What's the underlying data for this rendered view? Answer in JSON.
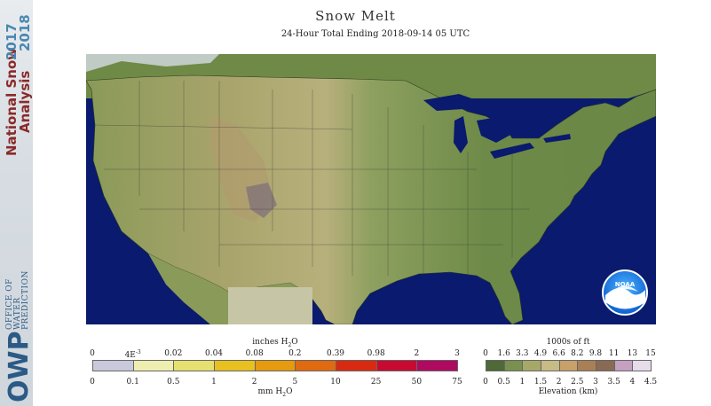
{
  "title": "Snow Melt",
  "subtitle": "24-Hour Total Ending 2018-09-14 05 UTC",
  "sidebar": {
    "title_line1": "National Snow",
    "title_line2": "Analysis",
    "year_line1": "2017",
    "year_line2": "2018",
    "org_lines": [
      "OFFICE OF",
      "WATER",
      "PREDICTION"
    ],
    "org_abbrev": "OWP"
  },
  "noaa_logo": "NOAA",
  "colors": {
    "ocean": "#0a1a6e",
    "land_low": "#6f8a46",
    "land_mid": "#a3a868",
    "land_high": "#c9b889",
    "snow_cap": "#e8e8f0"
  },
  "legend_melt": {
    "top_label": "inches H",
    "top_label_sub": "2",
    "top_label_end": "O",
    "top_ticks": [
      "0",
      "4E",
      "0.02",
      "0.04",
      "0.08",
      "0.2",
      "0.39",
      "0.98",
      "2",
      "3"
    ],
    "top_tick_sup": "-3",
    "bottom_ticks": [
      "0",
      "0.1",
      "0.5",
      "1",
      "2",
      "5",
      "10",
      "25",
      "50",
      "75"
    ],
    "bottom_label": "mm H",
    "bottom_label_sub": "2",
    "bottom_label_end": "O",
    "swatch_colors": [
      "#c9c9dc",
      "#eeeeb0",
      "#e6e070",
      "#e8c020",
      "#e59a10",
      "#e06a10",
      "#d82a10",
      "#c80a30",
      "#b00a60"
    ]
  },
  "legend_elev": {
    "top_label": "1000s of ft",
    "top_ticks": [
      "0",
      "1.6",
      "3.3",
      "4.9",
      "6.6",
      "8.2",
      "9.8",
      "11",
      "13",
      "15"
    ],
    "bottom_ticks": [
      "0",
      "0.5",
      "1",
      "1.5",
      "2",
      "2.5",
      "3",
      "3.5",
      "4",
      "4.5"
    ],
    "bottom_label": "Elevation (km)",
    "swatch_colors": [
      "#4f6a36",
      "#7a9050",
      "#a6a868",
      "#c8bb84",
      "#c7a06a",
      "#a97f55",
      "#8a6a55",
      "#c6a0c0",
      "#e6dcea"
    ]
  }
}
